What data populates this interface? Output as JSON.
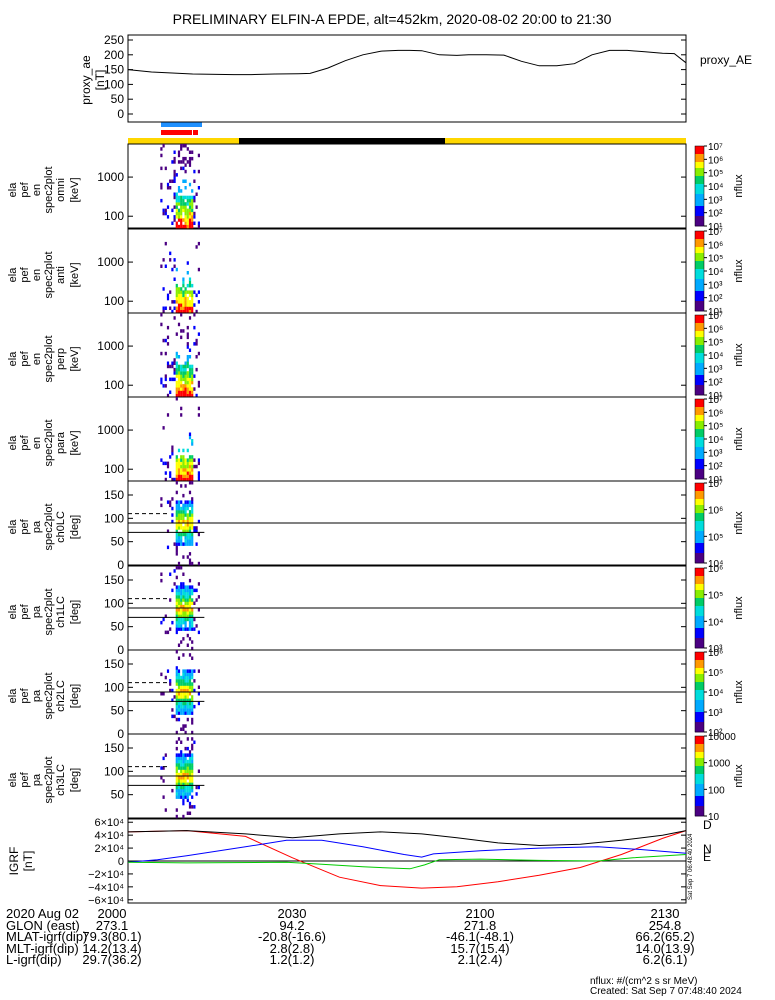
{
  "title": "PRELIMINARY ELFIN-A EPDE, alt=452km, 2020-08-02 20:00 to 21:30",
  "chart_data": [
    {
      "type": "line",
      "ylabel": "proxy_ae [nT]",
      "legend": "proxy_AE",
      "ylim": [
        0,
        250
      ],
      "yticks": [
        0,
        50,
        100,
        150,
        200,
        250
      ],
      "x_minutes": [
        0,
        8,
        22,
        36,
        42,
        50,
        58,
        62,
        68,
        74,
        80,
        86,
        92,
        96,
        100,
        106,
        112,
        116,
        122,
        128,
        134,
        140,
        146,
        152,
        158,
        164,
        170,
        176,
        182,
        186,
        190
      ],
      "values": [
        150,
        142,
        135,
        133,
        133,
        135,
        136,
        137,
        155,
        180,
        200,
        212,
        215,
        215,
        214,
        200,
        198,
        200,
        200,
        199,
        178,
        163,
        163,
        170,
        200,
        215,
        215,
        210,
        205,
        204,
        173
      ]
    },
    {
      "type": "heatmap",
      "label_lines": [
        "ela",
        "pef",
        "en",
        "spec2plot",
        "omni",
        "[keV]"
      ],
      "ylog": true,
      "yticks": [
        100,
        1000
      ],
      "colorbar_ticks": [
        "10⁷",
        "10⁶",
        "10⁵",
        "10⁴",
        "10³",
        "10²",
        "10¹"
      ],
      "colorbar_label": "nflux"
    },
    {
      "type": "heatmap",
      "label_lines": [
        "ela",
        "pef",
        "en",
        "spec2plot",
        "anti",
        "[keV]"
      ],
      "ylog": true,
      "yticks": [
        100,
        1000
      ],
      "colorbar_ticks": [
        "10⁷",
        "10⁶",
        "10⁵",
        "10⁴",
        "10³",
        "10²",
        "10¹"
      ],
      "colorbar_label": "nflux"
    },
    {
      "type": "heatmap",
      "label_lines": [
        "ela",
        "pef",
        "en",
        "spec2plot",
        "perp",
        "[keV]"
      ],
      "ylog": true,
      "yticks": [
        100,
        1000
      ],
      "colorbar_ticks": [
        "10⁷",
        "10⁶",
        "10⁵",
        "10⁴",
        "10³",
        "10²",
        "10¹"
      ],
      "colorbar_label": "nflux"
    },
    {
      "type": "heatmap",
      "label_lines": [
        "ela",
        "pef",
        "en",
        "spec2plot",
        "para",
        "[keV]"
      ],
      "ylog": true,
      "yticks": [
        100,
        1000
      ],
      "colorbar_ticks": [
        "10⁷",
        "10⁶",
        "10⁵",
        "10⁴",
        "10³",
        "10²",
        "10¹"
      ],
      "colorbar_label": "nflux"
    },
    {
      "type": "heatmap",
      "label_lines": [
        "ela",
        "pef",
        "pa",
        "spec2plot",
        "ch0LC",
        "[deg]"
      ],
      "ylim": [
        0,
        180
      ],
      "yticks": [
        0,
        50,
        100,
        150
      ],
      "colorbar_ticks": [
        "10⁷",
        "10⁶",
        "10⁵",
        "10⁴"
      ],
      "colorbar_label": "nflux"
    },
    {
      "type": "heatmap",
      "label_lines": [
        "ela",
        "pef",
        "pa",
        "spec2plot",
        "ch1LC",
        "[deg]"
      ],
      "ylim": [
        0,
        180
      ],
      "yticks": [
        0,
        50,
        100,
        150
      ],
      "colorbar_ticks": [
        "10⁶",
        "10⁵",
        "10⁴",
        "10³"
      ],
      "colorbar_label": "nflux"
    },
    {
      "type": "heatmap",
      "label_lines": [
        "ela",
        "pef",
        "pa",
        "spec2plot",
        "ch2LC",
        "[deg]"
      ],
      "ylim": [
        0,
        180
      ],
      "yticks": [
        0,
        50,
        100,
        150
      ],
      "colorbar_ticks": [
        "10⁶",
        "10⁵",
        "10⁴",
        "10³",
        "10²"
      ],
      "colorbar_label": "nflux"
    },
    {
      "type": "heatmap",
      "label_lines": [
        "ela",
        "pef",
        "pa",
        "spec2plot",
        "ch3LC",
        "[deg]"
      ],
      "ylim": [
        0,
        180
      ],
      "yticks": [
        50,
        100,
        150
      ],
      "colorbar_ticks": [
        "10000",
        "1000",
        "100",
        "10"
      ],
      "colorbar_label": "nflux"
    },
    {
      "type": "line",
      "ylabel": "IGRF [nT]",
      "ylim": [
        -65000,
        65000
      ],
      "yticks": [
        "6×10⁴",
        "4×10⁴",
        "2×10⁴",
        "0",
        "−2×10⁴",
        "−4×10⁴",
        "−6×10⁴"
      ],
      "series": [
        {
          "name": "D",
          "color": "#ff0000",
          "x_minutes": [
            0,
            20,
            40,
            56,
            72,
            86,
            100,
            112,
            126,
            140,
            154,
            168,
            182,
            190
          ],
          "values": [
            45000,
            47000,
            38000,
            5000,
            -25000,
            -38000,
            -42000,
            -40000,
            -32000,
            -22000,
            -10000,
            10000,
            35000,
            47000
          ]
        },
        {
          "name": "N",
          "color": "#0000ff",
          "x_minutes": [
            0,
            10,
            20,
            40,
            54,
            66,
            80,
            94,
            100,
            104,
            120,
            140,
            160,
            174,
            190
          ],
          "values": [
            -2000,
            2000,
            8000,
            22000,
            32000,
            32000,
            22000,
            10000,
            6000,
            11000,
            16000,
            20000,
            22000,
            18000,
            12000
          ]
        },
        {
          "name": "E",
          "color": "#00cc00",
          "x_minutes": [
            0,
            20,
            54,
            66,
            80,
            96,
            101,
            106,
            120,
            140,
            160,
            172,
            190
          ],
          "values": [
            -2000,
            -3000,
            -2000,
            -5000,
            -9000,
            -12000,
            -6000,
            2000,
            3000,
            1000,
            0,
            5000,
            10000
          ]
        },
        {
          "name": "|B|",
          "color": "#000000",
          "x_minutes": [
            0,
            20,
            40,
            56,
            72,
            86,
            100,
            112,
            126,
            140,
            154,
            168,
            182,
            190
          ],
          "values": [
            45000,
            47000,
            42000,
            36000,
            42000,
            45000,
            42000,
            36000,
            28000,
            24000,
            26000,
            32000,
            40000,
            47000
          ]
        }
      ]
    }
  ],
  "footer": {
    "rows": [
      {
        "label": "2020 Aug 02",
        "values": [
          "2000",
          "2030",
          "2100",
          "2130"
        ]
      },
      {
        "label": "GLON (east)",
        "values": [
          "273.1",
          "94.2",
          "271.8",
          "254.8"
        ]
      },
      {
        "label": "MLAT-igrf(dip)",
        "values": [
          "79.3(80.1)",
          "-20.8(-16.6)",
          "-46.1(-48.1)",
          "66.2(65.2)"
        ]
      },
      {
        "label": "MLT-igrf(dip)",
        "values": [
          "14.2(13.4)",
          "2.8(2.8)",
          "15.7(15.4)",
          "14.0(13.9)"
        ]
      },
      {
        "label": "L-igrf(dip)",
        "values": [
          "29.7(36.2)",
          "1.2(1.2)",
          "2.1(2.4)",
          "6.2(6.1)"
        ]
      }
    ],
    "units_note": "nflux: #/(cm^2 s sr MeV)",
    "created_note": "Created: Sat Sep  7 07:48:40 2024",
    "side_stamp": "Sat Sep  7 06:48:40 2024",
    "igrf_legend": [
      "D",
      "N",
      "E"
    ]
  }
}
